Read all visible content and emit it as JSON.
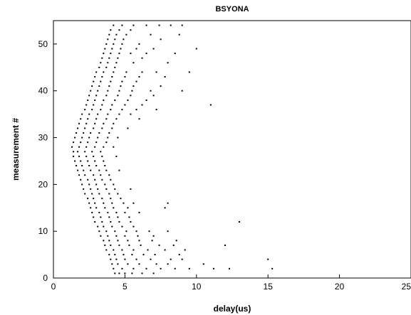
{
  "chart_data": {
    "type": "scatter",
    "title": "BSYONA",
    "xlabel": "delay(us)",
    "ylabel": "measurement #",
    "xlim": [
      0,
      25
    ],
    "ylim": [
      0,
      55
    ],
    "xticks": [
      "0",
      "5",
      "10",
      "15",
      "20",
      "25"
    ],
    "yticks": [
      "0",
      "10",
      "20",
      "30",
      "40",
      "50"
    ],
    "grid": false,
    "marker_color": "#000000",
    "series": [
      {
        "points": [
          [
            4.3,
            1
          ],
          [
            4.6,
            1
          ],
          [
            5.0,
            1
          ],
          [
            5.5,
            1
          ],
          [
            6.2,
            1
          ],
          [
            7.0,
            1
          ],
          [
            4.2,
            2
          ],
          [
            4.8,
            2
          ],
          [
            5.6,
            2
          ],
          [
            6.5,
            2
          ],
          [
            7.5,
            2
          ],
          [
            8.5,
            2
          ],
          [
            9.5,
            2
          ],
          [
            11.2,
            2
          ],
          [
            12.3,
            2
          ],
          [
            15.3,
            2
          ],
          [
            4.1,
            3
          ],
          [
            4.5,
            3
          ],
          [
            5.2,
            3
          ],
          [
            6.0,
            3
          ],
          [
            7.2,
            3
          ],
          [
            8.0,
            3
          ],
          [
            10.5,
            3
          ],
          [
            4.0,
            4
          ],
          [
            4.4,
            4
          ],
          [
            5.0,
            4
          ],
          [
            5.8,
            4
          ],
          [
            6.8,
            4
          ],
          [
            8.2,
            4
          ],
          [
            9.0,
            4
          ],
          [
            15.0,
            4
          ],
          [
            3.9,
            5
          ],
          [
            4.3,
            5
          ],
          [
            4.9,
            5
          ],
          [
            5.5,
            5
          ],
          [
            6.3,
            5
          ],
          [
            7.1,
            5
          ],
          [
            8.8,
            5
          ],
          [
            3.7,
            6
          ],
          [
            4.2,
            6
          ],
          [
            4.8,
            6
          ],
          [
            5.6,
            6
          ],
          [
            6.6,
            6
          ],
          [
            7.8,
            6
          ],
          [
            9.2,
            6
          ],
          [
            3.6,
            7
          ],
          [
            4.0,
            7
          ],
          [
            4.6,
            7
          ],
          [
            5.3,
            7
          ],
          [
            6.1,
            7
          ],
          [
            7.4,
            7
          ],
          [
            8.4,
            7
          ],
          [
            12.0,
            7
          ],
          [
            3.5,
            8
          ],
          [
            3.9,
            8
          ],
          [
            4.5,
            8
          ],
          [
            5.2,
            8
          ],
          [
            6.0,
            8
          ],
          [
            6.9,
            8
          ],
          [
            8.6,
            8
          ],
          [
            3.3,
            9
          ],
          [
            3.8,
            9
          ],
          [
            4.4,
            9
          ],
          [
            5.0,
            9
          ],
          [
            5.9,
            9
          ],
          [
            7.0,
            9
          ],
          [
            3.2,
            10
          ],
          [
            3.7,
            10
          ],
          [
            4.3,
            10
          ],
          [
            5.1,
            10
          ],
          [
            5.8,
            10
          ],
          [
            6.7,
            10
          ],
          [
            8.0,
            10
          ],
          [
            3.1,
            11
          ],
          [
            3.5,
            11
          ],
          [
            4.1,
            11
          ],
          [
            4.8,
            11
          ],
          [
            5.6,
            11
          ],
          [
            2.9,
            12
          ],
          [
            3.4,
            12
          ],
          [
            4.0,
            12
          ],
          [
            4.6,
            12
          ],
          [
            5.4,
            12
          ],
          [
            13.0,
            12
          ],
          [
            2.8,
            13
          ],
          [
            3.3,
            13
          ],
          [
            3.9,
            13
          ],
          [
            4.5,
            13
          ],
          [
            5.3,
            13
          ],
          [
            2.7,
            14
          ],
          [
            3.2,
            14
          ],
          [
            3.8,
            14
          ],
          [
            4.4,
            14
          ],
          [
            5.0,
            14
          ],
          [
            6.0,
            14
          ],
          [
            2.6,
            15
          ],
          [
            3.0,
            15
          ],
          [
            3.6,
            15
          ],
          [
            4.2,
            15
          ],
          [
            5.2,
            15
          ],
          [
            7.8,
            15
          ],
          [
            2.5,
            16
          ],
          [
            2.9,
            16
          ],
          [
            3.5,
            16
          ],
          [
            4.1,
            16
          ],
          [
            4.9,
            16
          ],
          [
            5.6,
            16
          ],
          [
            8.0,
            16
          ],
          [
            2.4,
            17
          ],
          [
            2.8,
            17
          ],
          [
            3.4,
            17
          ],
          [
            4.0,
            17
          ],
          [
            4.7,
            17
          ],
          [
            2.2,
            18
          ],
          [
            2.7,
            18
          ],
          [
            3.2,
            18
          ],
          [
            3.9,
            18
          ],
          [
            4.5,
            18
          ],
          [
            2.1,
            19
          ],
          [
            2.6,
            19
          ],
          [
            3.1,
            19
          ],
          [
            3.7,
            19
          ],
          [
            4.3,
            19
          ],
          [
            5.4,
            19
          ],
          [
            2.0,
            20
          ],
          [
            2.5,
            20
          ],
          [
            3.0,
            20
          ],
          [
            3.6,
            20
          ],
          [
            4.2,
            20
          ],
          [
            1.9,
            21
          ],
          [
            2.4,
            21
          ],
          [
            2.9,
            21
          ],
          [
            3.4,
            21
          ],
          [
            4.0,
            21
          ],
          [
            1.8,
            22
          ],
          [
            2.2,
            22
          ],
          [
            2.8,
            22
          ],
          [
            3.3,
            22
          ],
          [
            3.9,
            22
          ],
          [
            1.7,
            23
          ],
          [
            2.1,
            23
          ],
          [
            2.6,
            23
          ],
          [
            3.2,
            23
          ],
          [
            3.7,
            23
          ],
          [
            4.6,
            23
          ],
          [
            1.6,
            24
          ],
          [
            2.0,
            24
          ],
          [
            2.5,
            24
          ],
          [
            3.0,
            24
          ],
          [
            3.6,
            24
          ],
          [
            1.5,
            25
          ],
          [
            1.9,
            25
          ],
          [
            2.4,
            25
          ],
          [
            2.9,
            25
          ],
          [
            3.5,
            25
          ],
          [
            1.4,
            26
          ],
          [
            1.8,
            26
          ],
          [
            2.3,
            26
          ],
          [
            2.8,
            26
          ],
          [
            3.4,
            26
          ],
          [
            4.4,
            26
          ],
          [
            1.4,
            27
          ],
          [
            1.7,
            27
          ],
          [
            2.2,
            27
          ],
          [
            2.7,
            27
          ],
          [
            3.3,
            27
          ],
          [
            1.3,
            28
          ],
          [
            1.8,
            28
          ],
          [
            2.3,
            28
          ],
          [
            2.9,
            28
          ],
          [
            3.5,
            28
          ],
          [
            4.2,
            28
          ],
          [
            1.4,
            29
          ],
          [
            1.9,
            29
          ],
          [
            2.4,
            29
          ],
          [
            3.0,
            29
          ],
          [
            3.7,
            29
          ],
          [
            1.5,
            30
          ],
          [
            2.0,
            30
          ],
          [
            2.5,
            30
          ],
          [
            3.1,
            30
          ],
          [
            3.8,
            30
          ],
          [
            4.5,
            30
          ],
          [
            1.6,
            31
          ],
          [
            2.1,
            31
          ],
          [
            2.6,
            31
          ],
          [
            3.2,
            31
          ],
          [
            3.9,
            31
          ],
          [
            1.7,
            32
          ],
          [
            2.2,
            32
          ],
          [
            2.8,
            32
          ],
          [
            3.4,
            32
          ],
          [
            4.1,
            32
          ],
          [
            5.2,
            32
          ],
          [
            1.8,
            33
          ],
          [
            2.3,
            33
          ],
          [
            2.9,
            33
          ],
          [
            3.5,
            33
          ],
          [
            4.2,
            33
          ],
          [
            1.9,
            34
          ],
          [
            2.4,
            34
          ],
          [
            3.0,
            34
          ],
          [
            3.7,
            34
          ],
          [
            4.4,
            34
          ],
          [
            6.0,
            34
          ],
          [
            2.0,
            35
          ],
          [
            2.5,
            35
          ],
          [
            3.1,
            35
          ],
          [
            3.8,
            35
          ],
          [
            4.6,
            35
          ],
          [
            5.4,
            35
          ],
          [
            2.2,
            36
          ],
          [
            2.7,
            36
          ],
          [
            3.3,
            36
          ],
          [
            4.0,
            36
          ],
          [
            4.8,
            36
          ],
          [
            5.8,
            36
          ],
          [
            7.2,
            36
          ],
          [
            2.3,
            37
          ],
          [
            2.8,
            37
          ],
          [
            3.4,
            37
          ],
          [
            4.1,
            37
          ],
          [
            5.0,
            37
          ],
          [
            6.2,
            37
          ],
          [
            11.0,
            37
          ],
          [
            2.4,
            38
          ],
          [
            2.9,
            38
          ],
          [
            3.5,
            38
          ],
          [
            4.3,
            38
          ],
          [
            5.2,
            38
          ],
          [
            6.5,
            38
          ],
          [
            2.5,
            39
          ],
          [
            3.0,
            39
          ],
          [
            3.7,
            39
          ],
          [
            4.5,
            39
          ],
          [
            5.4,
            39
          ],
          [
            7.0,
            39
          ],
          [
            2.6,
            40
          ],
          [
            3.1,
            40
          ],
          [
            3.8,
            40
          ],
          [
            4.6,
            40
          ],
          [
            5.5,
            40
          ],
          [
            6.8,
            40
          ],
          [
            9.0,
            40
          ],
          [
            2.7,
            41
          ],
          [
            3.2,
            41
          ],
          [
            3.9,
            41
          ],
          [
            4.7,
            41
          ],
          [
            5.6,
            41
          ],
          [
            7.5,
            41
          ],
          [
            2.8,
            42
          ],
          [
            3.3,
            42
          ],
          [
            4.0,
            42
          ],
          [
            4.8,
            42
          ],
          [
            5.8,
            42
          ],
          [
            2.9,
            43
          ],
          [
            3.4,
            43
          ],
          [
            4.1,
            43
          ],
          [
            5.0,
            43
          ],
          [
            6.0,
            43
          ],
          [
            7.8,
            43
          ],
          [
            3.0,
            44
          ],
          [
            3.5,
            44
          ],
          [
            4.2,
            44
          ],
          [
            5.1,
            44
          ],
          [
            6.2,
            44
          ],
          [
            7.2,
            44
          ],
          [
            9.5,
            44
          ],
          [
            3.2,
            45
          ],
          [
            3.7,
            45
          ],
          [
            4.3,
            45
          ],
          [
            3.3,
            46
          ],
          [
            3.8,
            46
          ],
          [
            4.4,
            46
          ],
          [
            5.6,
            46
          ],
          [
            8.0,
            46
          ],
          [
            3.4,
            47
          ],
          [
            3.9,
            47
          ],
          [
            4.5,
            47
          ],
          [
            6.2,
            47
          ],
          [
            3.5,
            48
          ],
          [
            4.0,
            48
          ],
          [
            4.6,
            48
          ],
          [
            5.4,
            48
          ],
          [
            6.5,
            48
          ],
          [
            8.5,
            48
          ],
          [
            3.6,
            49
          ],
          [
            4.1,
            49
          ],
          [
            4.7,
            49
          ],
          [
            5.8,
            49
          ],
          [
            7.0,
            49
          ],
          [
            10.0,
            49
          ],
          [
            3.7,
            50
          ],
          [
            4.2,
            50
          ],
          [
            4.8,
            50
          ],
          [
            6.0,
            50
          ],
          [
            3.8,
            51
          ],
          [
            4.3,
            51
          ],
          [
            4.9,
            51
          ],
          [
            7.5,
            51
          ],
          [
            3.9,
            52
          ],
          [
            4.4,
            52
          ],
          [
            5.1,
            52
          ],
          [
            6.8,
            52
          ],
          [
            8.8,
            52
          ],
          [
            4.0,
            53
          ],
          [
            4.6,
            53
          ],
          [
            5.4,
            53
          ],
          [
            4.2,
            54
          ],
          [
            4.8,
            54
          ],
          [
            5.6,
            54
          ],
          [
            6.5,
            54
          ],
          [
            7.4,
            54
          ],
          [
            8.2,
            54
          ],
          [
            9.0,
            54
          ]
        ]
      }
    ]
  }
}
